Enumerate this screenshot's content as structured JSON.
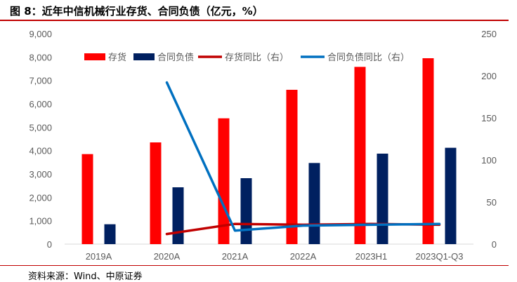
{
  "header": {
    "title": "图 8：近年中信机械行业存货、合同负债（亿元，%）"
  },
  "footer": {
    "source": "资料来源：Wind、中原证券"
  },
  "colors": {
    "inventory": "#ff0000",
    "contract_liab": "#002060",
    "inventory_yoy": "#c00000",
    "contract_yoy": "#0070c0",
    "accent_rule": "#c00000"
  },
  "chart_data": {
    "type": "bar",
    "categories": [
      "2019A",
      "2020A",
      "2021A",
      "2022A",
      "2023H1",
      "2023Q1-Q3"
    ],
    "y_left": {
      "ylim": [
        0,
        9000
      ],
      "ticks": [
        "0",
        "1,000",
        "2,000",
        "3,000",
        "4,000",
        "5,000",
        "6,000",
        "7,000",
        "8,000",
        "9,000"
      ],
      "tick_values": [
        0,
        1000,
        2000,
        3000,
        4000,
        5000,
        6000,
        7000,
        8000,
        9000
      ]
    },
    "y_right": {
      "ylim": [
        0,
        250
      ],
      "ticks": [
        "0",
        "50",
        "100",
        "150",
        "200",
        "250"
      ],
      "tick_values": [
        0,
        50,
        100,
        150,
        200,
        250
      ]
    },
    "series": [
      {
        "name": "存货",
        "type": "bar",
        "axis": "left",
        "values": [
          3850,
          4350,
          5380,
          6600,
          7580,
          7950
        ]
      },
      {
        "name": "合同负债",
        "type": "bar",
        "axis": "left",
        "values": [
          850,
          2430,
          2820,
          3470,
          3870,
          4120
        ]
      },
      {
        "name": "存货同比（右）",
        "type": "line",
        "axis": "right",
        "values": [
          null,
          12,
          24,
          23,
          24,
          23
        ]
      },
      {
        "name": "合同负债同比（右）",
        "type": "line",
        "axis": "right",
        "values": [
          null,
          192,
          16,
          22,
          23,
          24
        ]
      }
    ],
    "legend_position": "top",
    "grid": false
  }
}
